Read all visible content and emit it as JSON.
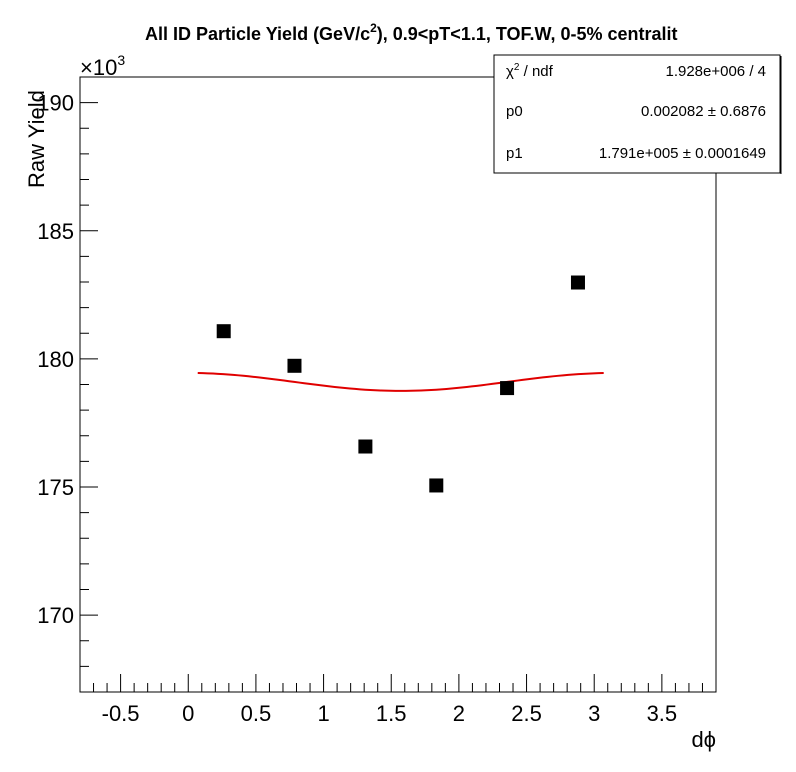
{
  "chart_data": {
    "type": "scatter",
    "title_main": "All ID Particle Yield (GeV/c",
    "title_sup": "2",
    "title_rest": "), 0.9<pT<1.1, TOF.W, 0-5% centralit",
    "xlabel": "dϕ",
    "ylabel": "Raw Yield",
    "y_multiplier_base": "×10",
    "y_multiplier_exp": "3",
    "xlim": [
      -0.8,
      3.9
    ],
    "ylim": [
      167,
      191
    ],
    "x_ticks": [
      -0.5,
      0,
      0.5,
      1,
      1.5,
      2,
      2.5,
      3,
      3.5
    ],
    "x_tick_labels": [
      "-0.5",
      "0",
      "0.5",
      "1",
      "1.5",
      "2",
      "2.5",
      "3",
      "3.5"
    ],
    "y_ticks": [
      170,
      175,
      180,
      185,
      190
    ],
    "y_tick_labels": [
      "170",
      "175",
      "180",
      "185",
      "190"
    ],
    "x_minor_step": 0.1,
    "y_minor_step": 1,
    "points": [
      {
        "x": 0.262,
        "y": 181.08
      },
      {
        "x": 0.785,
        "y": 179.73
      },
      {
        "x": 1.309,
        "y": 176.58
      },
      {
        "x": 1.833,
        "y": 175.06
      },
      {
        "x": 2.356,
        "y": 178.86
      },
      {
        "x": 2.88,
        "y": 182.98
      }
    ],
    "fit": {
      "x_range": [
        0.07,
        3.07
      ],
      "constant": 179.1,
      "amplitude": 0.35,
      "color": "#e00000"
    },
    "marker_color": "#000000",
    "stats": {
      "rows": [
        {
          "label": "χ",
          "label_sup": "2",
          "label_rest": " / ndf",
          "value": "1.928e+006 / 4"
        },
        {
          "label": "p0",
          "label_sup": "",
          "label_rest": "",
          "value": "0.002082 ± 0.6876"
        },
        {
          "label": "p1",
          "label_sup": "",
          "label_rest": "",
          "value": "1.791e+005 ± 0.0001649"
        }
      ]
    }
  }
}
